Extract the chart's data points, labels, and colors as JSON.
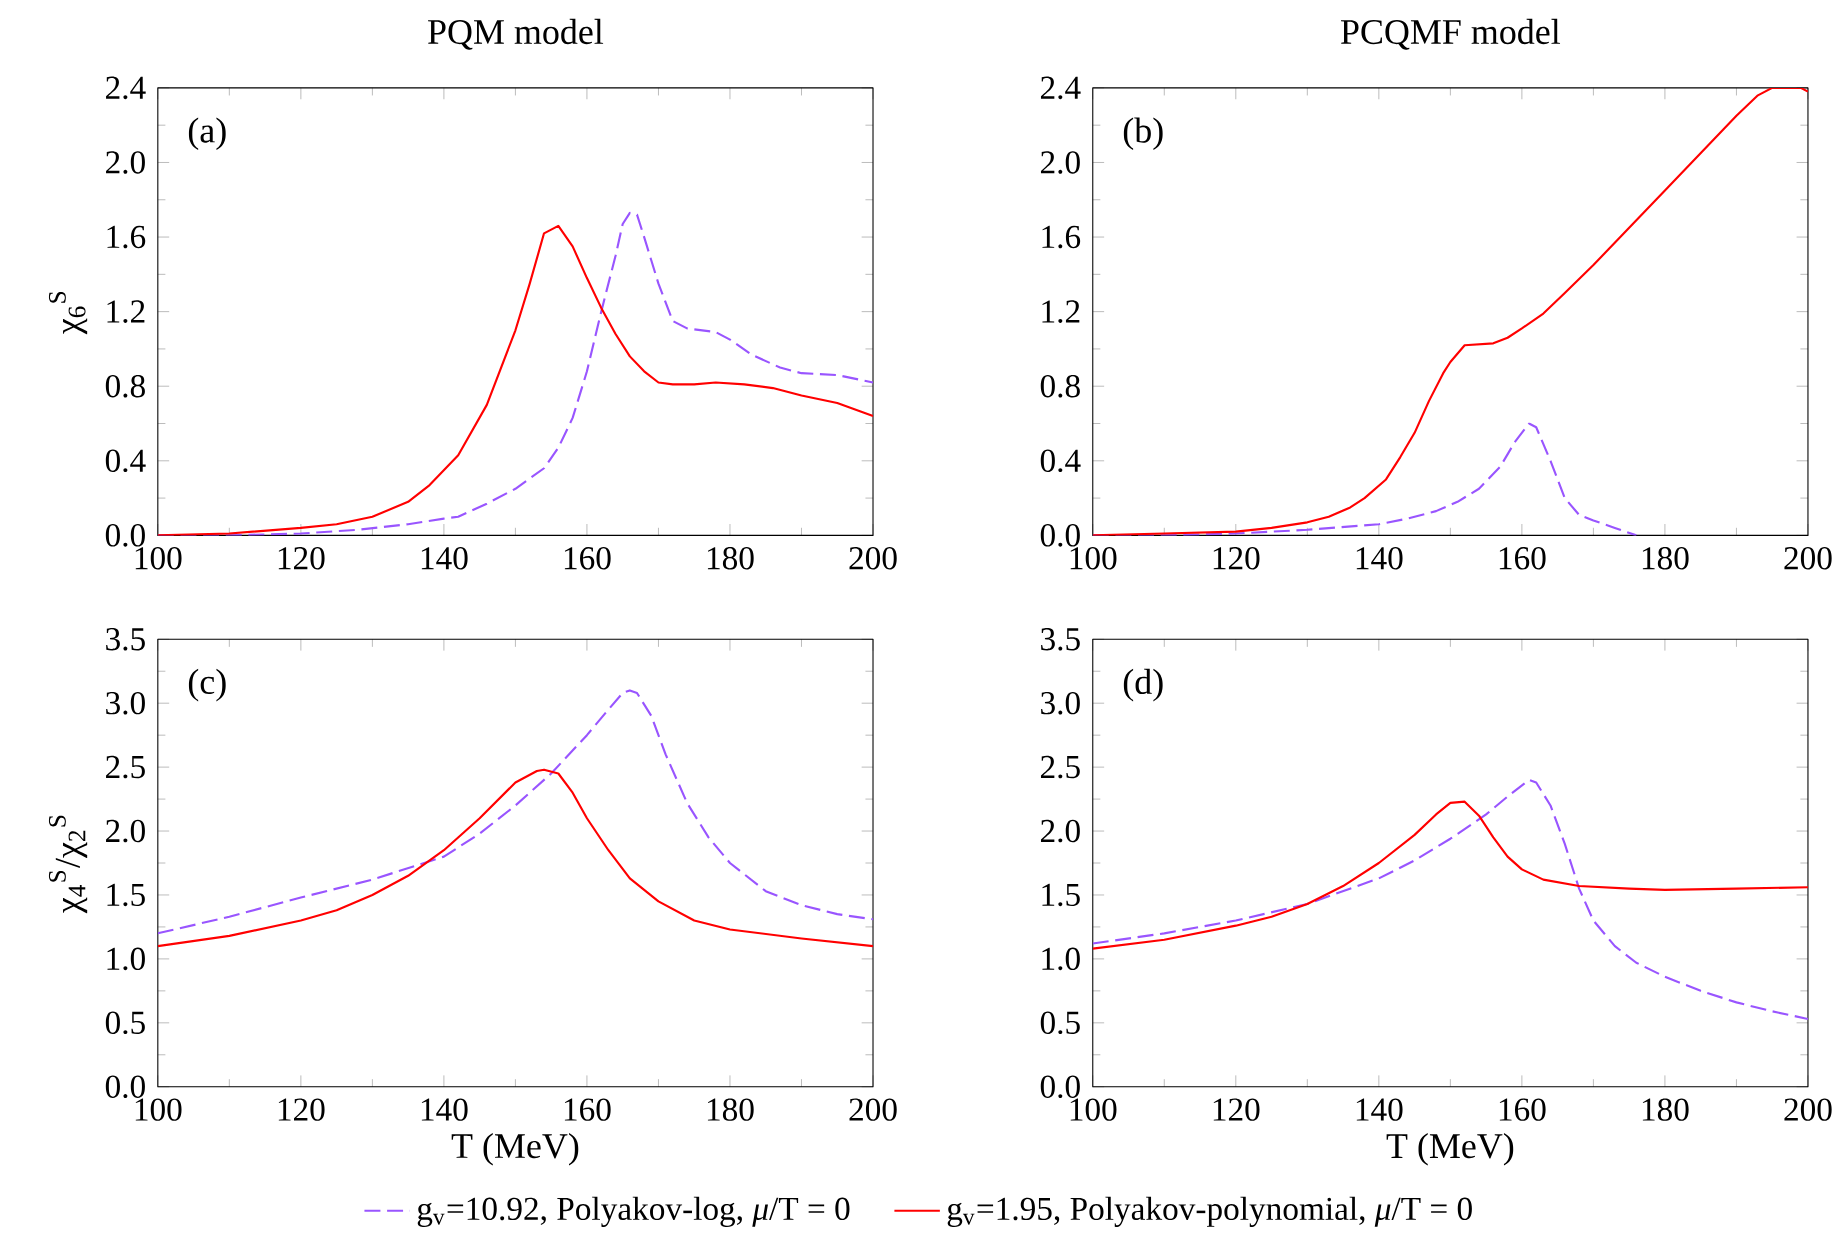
{
  "chart_data": [
    {
      "type": "line",
      "title": "PQM model",
      "ylabel": "χ$_{6}$$^{S}$",
      "annotations": [
        "(a)"
      ],
      "xlim": [
        100,
        200
      ],
      "ylim": [
        0,
        2.4
      ],
      "xticks": [
        100,
        120,
        140,
        160,
        180,
        200
      ],
      "yticks": [
        {
          "value": 0,
          "label": "0.0"
        },
        0.4,
        0.8,
        1.2,
        1.6,
        {
          "value": 2,
          "label": "2.0"
        },
        2.4
      ],
      "series": [
        {
          "color": "#9955ff",
          "line_style": "dashed",
          "x": [
            100,
            110,
            120,
            128,
            135,
            140,
            142,
            146,
            150,
            154,
            156,
            158,
            160,
            162,
            164,
            165,
            166,
            167,
            168,
            170,
            172,
            174,
            178,
            180,
            183,
            187,
            190,
            195,
            200
          ],
          "values": [
            0.0,
            0.0,
            0.01,
            0.03,
            0.06,
            0.09,
            0.1,
            0.17,
            0.25,
            0.36,
            0.47,
            0.63,
            0.88,
            1.2,
            1.5,
            1.67,
            1.73,
            1.72,
            1.6,
            1.35,
            1.15,
            1.11,
            1.09,
            1.05,
            0.97,
            0.9,
            0.87,
            0.86,
            0.82
          ]
        },
        {
          "color": "#ff0000",
          "line_style": "solid",
          "x": [
            100,
            110,
            120,
            125,
            130,
            135,
            138,
            142,
            146,
            150,
            152,
            154,
            156,
            158,
            160,
            162,
            164,
            166,
            168,
            170,
            172,
            175,
            178,
            182,
            186,
            190,
            195,
            200
          ],
          "values": [
            0.0,
            0.01,
            0.04,
            0.06,
            0.1,
            0.18,
            0.27,
            0.43,
            0.7,
            1.1,
            1.35,
            1.62,
            1.66,
            1.55,
            1.38,
            1.22,
            1.08,
            0.96,
            0.88,
            0.82,
            0.81,
            0.81,
            0.82,
            0.81,
            0.79,
            0.75,
            0.71,
            0.64
          ]
        }
      ]
    },
    {
      "type": "line",
      "title": "PCQMF model",
      "annotations": [
        "(b)"
      ],
      "xlim": [
        100,
        200
      ],
      "ylim": [
        0,
        2.4
      ],
      "xticks": [
        100,
        120,
        140,
        160,
        180,
        200
      ],
      "yticks": [
        {
          "value": 0,
          "label": "0.0"
        },
        0.4,
        0.8,
        1.2,
        1.6,
        {
          "value": 2,
          "label": "2.0"
        },
        2.4
      ],
      "series": [
        {
          "color": "#9955ff",
          "line_style": "dashed",
          "x": [
            100,
            110,
            120,
            130,
            140,
            144,
            148,
            151,
            154,
            157,
            159,
            161,
            162,
            164,
            166,
            168,
            170,
            173,
            176
          ],
          "values": [
            0.0,
            0.0,
            0.01,
            0.03,
            0.06,
            0.09,
            0.13,
            0.18,
            0.25,
            0.37,
            0.5,
            0.6,
            0.58,
            0.4,
            0.2,
            0.11,
            0.08,
            0.04,
            0.0
          ]
        },
        {
          "color": "#ff0000",
          "line_style": "solid",
          "x": [
            100,
            110,
            120,
            125,
            130,
            133,
            136,
            138,
            141,
            143,
            145,
            147,
            149,
            150,
            152,
            156,
            158,
            160,
            163,
            166,
            170,
            175,
            180,
            185,
            190,
            193,
            195,
            199,
            200
          ],
          "values": [
            0.0,
            0.01,
            0.02,
            0.04,
            0.07,
            0.1,
            0.15,
            0.2,
            0.3,
            0.42,
            0.55,
            0.72,
            0.87,
            0.93,
            1.02,
            1.03,
            1.06,
            1.11,
            1.19,
            1.3,
            1.45,
            1.65,
            1.85,
            2.05,
            2.25,
            2.36,
            2.4,
            2.4,
            2.38
          ]
        }
      ]
    },
    {
      "type": "line",
      "xlabel": "T (MeV)",
      "ylabel": "χ$_{4}$$^{S}$/χ$_{2}$$^{S}$",
      "annotations": [
        "(c)"
      ],
      "legend": "bottom",
      "xlim": [
        100,
        200
      ],
      "ylim": [
        0,
        3.5
      ],
      "xticks": [
        100,
        120,
        140,
        160,
        180,
        200
      ],
      "yticks": [
        {
          "value": 0,
          "label": "0.0"
        },
        0.5,
        {
          "value": 1,
          "label": "1.0"
        },
        1.5,
        {
          "value": 2,
          "label": "2.0"
        },
        2.5,
        {
          "value": 3,
          "label": "3.0"
        },
        3.5
      ],
      "series": [
        {
          "name": "g$_{v}$=10.92, Polyakov-log, *μ*/T = 0",
          "color": "#9955ff",
          "line_style": "dashed",
          "x": [
            100,
            110,
            120,
            130,
            140,
            145,
            150,
            155,
            160,
            163,
            165,
            166,
            167,
            169,
            171,
            174,
            177,
            180,
            185,
            190,
            195,
            200
          ],
          "values": [
            1.2,
            1.33,
            1.48,
            1.62,
            1.8,
            1.98,
            2.2,
            2.45,
            2.75,
            2.95,
            3.08,
            3.1,
            3.08,
            2.9,
            2.6,
            2.22,
            1.95,
            1.75,
            1.53,
            1.42,
            1.35,
            1.31
          ]
        },
        {
          "name": "g$_{v}$=1.95, Polyakov-polynomial, *μ*/T = 0",
          "color": "#ff0000",
          "line_style": "solid",
          "x": [
            100,
            110,
            120,
            125,
            130,
            135,
            140,
            145,
            150,
            153,
            154,
            156,
            158,
            160,
            163,
            166,
            170,
            175,
            180,
            190,
            200
          ],
          "values": [
            1.1,
            1.18,
            1.3,
            1.38,
            1.5,
            1.65,
            1.85,
            2.1,
            2.38,
            2.47,
            2.48,
            2.45,
            2.3,
            2.1,
            1.85,
            1.63,
            1.45,
            1.3,
            1.23,
            1.16,
            1.1
          ]
        }
      ]
    },
    {
      "type": "line",
      "xlabel": "T (MeV)",
      "annotations": [
        "(d)"
      ],
      "xlim": [
        100,
        200
      ],
      "ylim": [
        0,
        3.5
      ],
      "xticks": [
        100,
        120,
        140,
        160,
        180,
        200
      ],
      "yticks": [
        {
          "value": 0,
          "label": "0.0"
        },
        0.5,
        {
          "value": 1,
          "label": "1.0"
        },
        1.5,
        {
          "value": 2,
          "label": "2.0"
        },
        2.5,
        {
          "value": 3,
          "label": "3.0"
        },
        3.5
      ],
      "series": [
        {
          "color": "#9955ff",
          "line_style": "dashed",
          "x": [
            100,
            110,
            120,
            130,
            140,
            145,
            150,
            155,
            158,
            161,
            162,
            164,
            166,
            168,
            170,
            173,
            176,
            180,
            185,
            190,
            195,
            200
          ],
          "values": [
            1.12,
            1.2,
            1.3,
            1.43,
            1.63,
            1.77,
            1.94,
            2.13,
            2.27,
            2.4,
            2.38,
            2.2,
            1.9,
            1.55,
            1.3,
            1.1,
            0.97,
            0.86,
            0.75,
            0.66,
            0.59,
            0.53
          ]
        },
        {
          "color": "#ff0000",
          "line_style": "solid",
          "x": [
            100,
            110,
            120,
            125,
            130,
            135,
            140,
            145,
            148,
            150,
            152,
            154,
            156,
            158,
            160,
            163,
            168,
            175,
            180,
            190,
            200
          ],
          "values": [
            1.08,
            1.15,
            1.26,
            1.33,
            1.43,
            1.57,
            1.75,
            1.97,
            2.13,
            2.22,
            2.23,
            2.12,
            1.95,
            1.8,
            1.7,
            1.62,
            1.57,
            1.55,
            1.54,
            1.55,
            1.56
          ]
        }
      ]
    }
  ]
}
